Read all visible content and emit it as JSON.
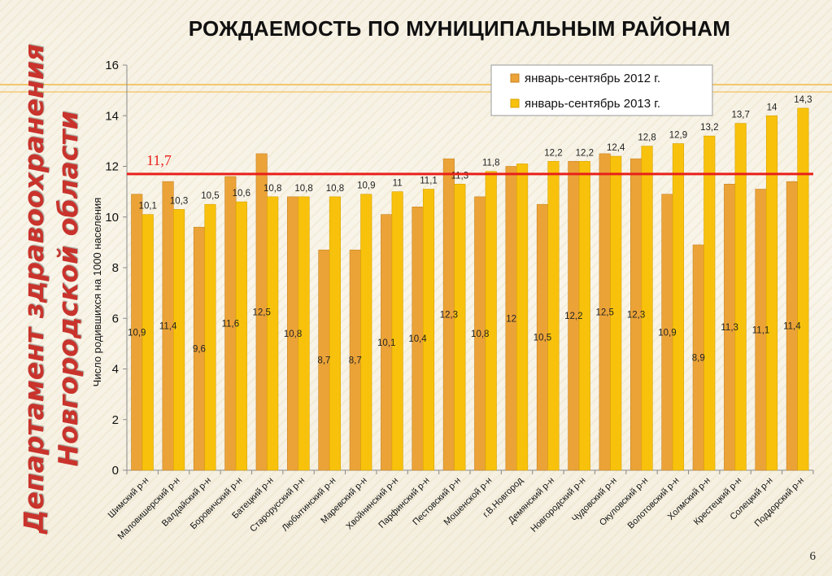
{
  "slide": {
    "title": "РОЖДАЕМОСТЬ ПО МУНИЦИПАЛЬНЫМ РАЙОНАМ",
    "dept_line1": "Департамент здравоохранения",
    "dept_line2": "Новгородской области",
    "page_number": "6"
  },
  "colors": {
    "series_2012": "#eba338",
    "series_2013": "#f8c20c",
    "reference_line": "#e8201a",
    "dept_text": "#c9332c"
  },
  "chart_data": {
    "type": "bar",
    "title": "",
    "xlabel": "",
    "ylabel": "Число родившихся на 1000 населения",
    "ylim": [
      0,
      16
    ],
    "yticks": [
      0,
      2,
      4,
      6,
      8,
      10,
      12,
      14,
      16
    ],
    "grid": false,
    "legend_position": "top-right",
    "reference_line": {
      "value": 11.7,
      "label": "11,7"
    },
    "categories": [
      "Шимский р-н",
      "Маловишерский р-н",
      "Валдайский р-н",
      "Боровичский р-н",
      "Батецкий р-н",
      "Старорусский р-н",
      "Любытинский р-н",
      "Маревский р-н",
      "Хвойнинский р-н",
      "Парфинский р-н",
      "Пестовский р-н",
      "Мошенской р-н",
      "г.В.Новгород",
      "Демянский р-н",
      "Новгородский р-н",
      "Чудовский р-н",
      "Окуловский р-н",
      "Волотовский р-н",
      "Холмский р-н",
      "Крестецкий р-н",
      "Солецкий р-н",
      "Поддорский р-н"
    ],
    "series": [
      {
        "name": "январь-сентябрь 2012 г.",
        "values": [
          10.9,
          11.4,
          9.6,
          11.6,
          12.5,
          10.8,
          8.7,
          8.7,
          10.1,
          10.4,
          12.3,
          10.8,
          12,
          10.5,
          12.2,
          12.5,
          12.3,
          10.9,
          8.9,
          11.3,
          11.1,
          11.4
        ],
        "labels": [
          "10,9",
          "11,4",
          "9,6",
          "11,6",
          "12,5",
          "10,8",
          "8,7",
          "8,7",
          "10,1",
          "10,4",
          "12,3",
          "10,8",
          "12",
          "10,5",
          "12,2",
          "12,5",
          "12,3",
          "10,9",
          "8,9",
          "11,3",
          "11,1",
          "11,4"
        ]
      },
      {
        "name": "январь-сентябрь 2013 г.",
        "values": [
          10.1,
          10.3,
          10.5,
          10.6,
          10.8,
          10.8,
          10.8,
          10.9,
          11,
          11.1,
          11.3,
          11.8,
          12.1,
          12.2,
          12.2,
          12.4,
          12.8,
          12.9,
          13.2,
          13.7,
          14,
          14.3
        ],
        "labels": [
          "10,1",
          "10,3",
          "10,5",
          "10,6",
          "10,8",
          "10,8",
          "10,8",
          "10,9",
          "11",
          "11,1",
          "11,3",
          "11,8",
          "",
          "12,2",
          "12,2",
          "12,4",
          "12,8",
          "12,9",
          "13,2",
          "13,7",
          "14",
          "14,3"
        ]
      }
    ]
  }
}
